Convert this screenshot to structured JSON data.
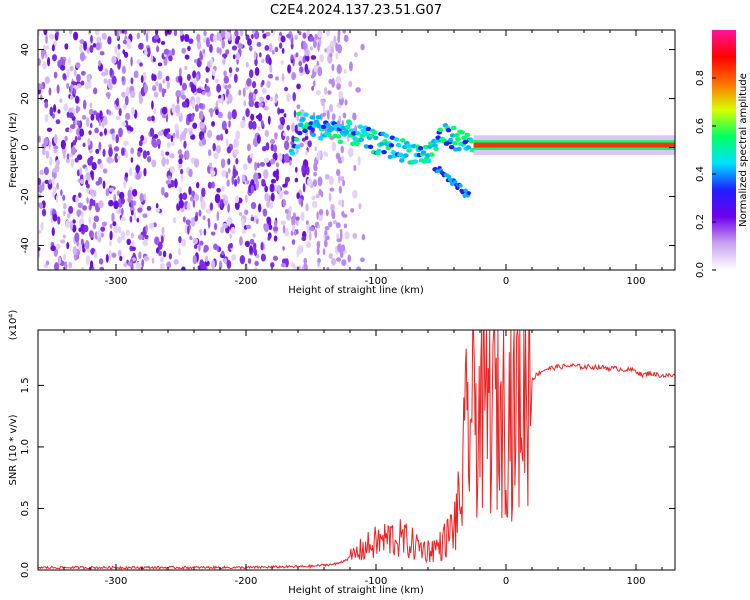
{
  "title": "C2E4.2024.137.23.51.G07",
  "chart_data": [
    {
      "type": "heatmap",
      "xlabel": "Height of straight line (km)",
      "ylabel": "Frequency (Hz)",
      "xlim": [
        -360,
        130
      ],
      "ylim": [
        -50,
        48
      ],
      "xticks": [
        -300,
        -200,
        -100,
        0,
        100
      ],
      "yticks": [
        -40,
        -20,
        0,
        20,
        40
      ],
      "colorbar": {
        "label": "Normalized spectral amplitude",
        "range": [
          0.0,
          1.0
        ],
        "ticks": [
          "0.0",
          "0.2",
          "0.4",
          "0.6",
          "0.8"
        ],
        "tick_values": [
          0.0,
          0.2,
          0.4,
          0.6,
          0.8
        ],
        "colors": [
          "#ffffff",
          "#c9a2f0",
          "#7000ee",
          "#1e1eff",
          "#00e1ff",
          "#00ff64",
          "#d8ff00",
          "#ff7000",
          "#ff0000",
          "#ff1499"
        ]
      },
      "noise_region_x": [
        -360,
        -125
      ],
      "signal_track": [
        {
          "x": -160,
          "freq": 10
        },
        {
          "x": -140,
          "freq": 8
        },
        {
          "x": -120,
          "freq": 6
        },
        {
          "x": -100,
          "freq": 2
        },
        {
          "x": -80,
          "freq": -1
        },
        {
          "x": -60,
          "freq": -3
        },
        {
          "x": -50,
          "freq": 5
        },
        {
          "x": -40,
          "freq": 4
        },
        {
          "x": -30,
          "freq": 2
        },
        {
          "x": -20,
          "freq": 1
        },
        {
          "x": 0,
          "freq": 1
        },
        {
          "x": 50,
          "freq": 1
        },
        {
          "x": 100,
          "freq": 1
        },
        {
          "x": 130,
          "freq": 1
        }
      ]
    },
    {
      "type": "line",
      "xlabel": "Height of straight line (km)",
      "ylabel": "SNR (10 * v/v)",
      "multiplier": "(x10⁴)",
      "xlim": [
        -360,
        130
      ],
      "ylim": [
        0,
        1.95
      ],
      "xticks": [
        -300,
        -200,
        -100,
        0,
        100
      ],
      "yticks": [
        "0.0",
        "0.5",
        "1.0",
        "1.5"
      ],
      "ytick_values": [
        0.0,
        0.5,
        1.0,
        1.5
      ],
      "color": "#ee2222",
      "series": [
        {
          "x": [
            -360,
            -300,
            -250,
            -200,
            -150,
            -130,
            -120,
            -110,
            -100,
            -90,
            -80,
            -70,
            -60,
            -50,
            -40,
            -35,
            -30,
            -25,
            -20,
            -15,
            -10,
            -5,
            0,
            5,
            10,
            15,
            20,
            25,
            30,
            40,
            50,
            60,
            70,
            80,
            90,
            100,
            105,
            110,
            120,
            130
          ],
          "y": [
            0.02,
            0.02,
            0.02,
            0.02,
            0.03,
            0.05,
            0.1,
            0.17,
            0.22,
            0.26,
            0.25,
            0.2,
            0.16,
            0.2,
            0.35,
            0.55,
            1.15,
            1.35,
            1.28,
            1.35,
            1.4,
            1.3,
            1.38,
            1.3,
            1.45,
            1.5,
            1.55,
            1.6,
            1.63,
            1.65,
            1.66,
            1.65,
            1.65,
            1.64,
            1.63,
            1.62,
            1.58,
            1.6,
            1.58,
            1.58
          ]
        }
      ]
    }
  ]
}
